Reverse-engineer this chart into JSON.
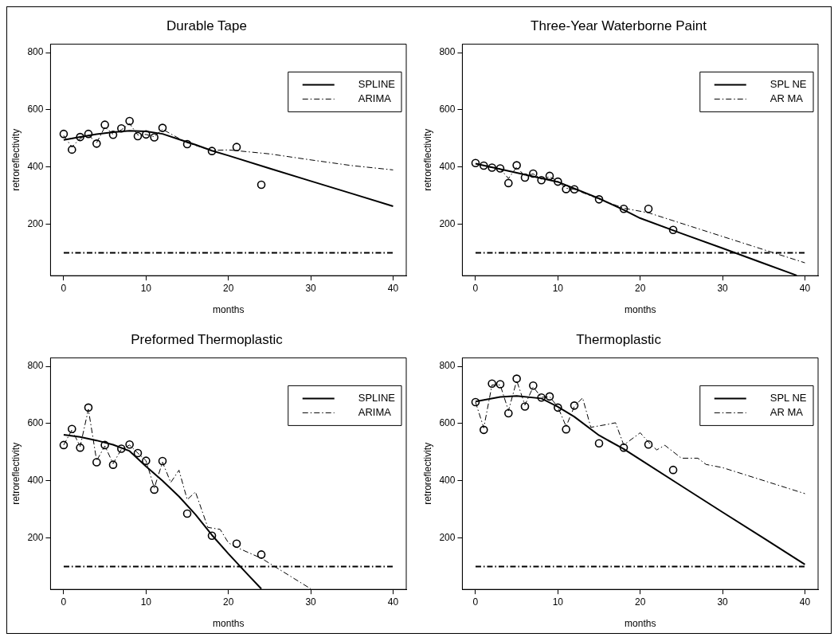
{
  "chart_data": [
    {
      "type": "line",
      "title": "Durable Tape",
      "xlabel": "months",
      "ylabel": "retroreflectivity",
      "xlim": [
        -1.6,
        41.6
      ],
      "ylim": [
        20,
        830
      ],
      "xticks": [
        0,
        10,
        20,
        30,
        40
      ],
      "yticks": [
        200,
        400,
        600,
        800
      ],
      "legend": "top right",
      "ref_lines": [
        {
          "axis": "y",
          "value": 100,
          "line_style": "dashed",
          "color": "#000000"
        }
      ],
      "series": [
        {
          "type": "scatter",
          "marker": "circle",
          "color": "#000000",
          "x": [
            0,
            1,
            2,
            3,
            4,
            5,
            6,
            7,
            8,
            9,
            10,
            11,
            12,
            15,
            18,
            21,
            24
          ],
          "values": [
            516,
            461,
            505,
            516,
            482,
            548,
            513,
            535,
            561,
            508,
            514,
            504,
            537,
            480,
            456,
            470,
            338
          ]
        },
        {
          "type": "line",
          "name": "SPLINE",
          "color": "#000000",
          "line_style": "solid",
          "marker": "none",
          "x": [
            0,
            2,
            4,
            6,
            8,
            10,
            12,
            14,
            16,
            18,
            20,
            25,
            30,
            35,
            40
          ],
          "values": [
            495,
            505,
            515,
            522,
            527,
            525,
            516,
            497,
            478,
            457,
            440,
            395,
            351,
            307,
            263
          ]
        },
        {
          "type": "line",
          "name": "ARIMA",
          "color": "#000000",
          "line_style": "dashed",
          "marker": "none",
          "x": [
            0,
            1,
            2,
            3,
            4,
            5,
            6,
            7,
            8,
            9,
            10,
            11,
            12,
            14,
            15,
            18,
            20,
            25,
            30,
            35,
            40
          ],
          "values": [
            510,
            470,
            500,
            512,
            485,
            540,
            515,
            530,
            552,
            512,
            514,
            506,
            532,
            500,
            485,
            458,
            460,
            446,
            425,
            405,
            390
          ]
        }
      ]
    },
    {
      "type": "line",
      "title": "Three-Year Waterborne Paint",
      "xlabel": "months",
      "ylabel": "retroreflectivity",
      "xlim": [
        -1.6,
        41.6
      ],
      "ylim": [
        20,
        830
      ],
      "xticks": [
        0,
        10,
        20,
        30,
        40
      ],
      "yticks": [
        200,
        400,
        600,
        800
      ],
      "legend": "top right",
      "ref_lines": [
        {
          "axis": "y",
          "value": 100,
          "line_style": "dashed",
          "color": "#000000"
        }
      ],
      "series": [
        {
          "type": "scatter",
          "marker": "circle",
          "color": "#000000",
          "x": [
            0,
            1,
            2,
            3,
            4,
            5,
            6,
            7,
            8,
            9,
            10,
            11,
            12,
            15,
            18,
            21,
            24
          ],
          "values": [
            414,
            405,
            398,
            395,
            344,
            406,
            363,
            377,
            354,
            369,
            349,
            323,
            322,
            287,
            254,
            254,
            180
          ]
        },
        {
          "type": "line",
          "name": "SPL NE",
          "color": "#000000",
          "line_style": "solid",
          "marker": "none",
          "x": [
            0,
            5,
            10,
            15,
            18,
            20,
            25,
            30,
            35,
            39
          ],
          "values": [
            412,
            380,
            348,
            290,
            250,
            221,
            168,
            116,
            63,
            21
          ]
        },
        {
          "type": "line",
          "name": "AR MA",
          "color": "#000000",
          "line_style": "dashed",
          "marker": "none",
          "x": [
            0,
            1,
            2,
            3,
            4,
            5,
            6,
            7,
            8,
            9,
            10,
            11,
            12,
            15,
            18,
            21,
            30,
            40
          ],
          "values": [
            412,
            405,
            398,
            394,
            360,
            400,
            368,
            376,
            358,
            366,
            350,
            326,
            322,
            288,
            256,
            240,
            157,
            65
          ]
        }
      ]
    },
    {
      "type": "line",
      "title": "Preformed Thermoplastic",
      "xlabel": "months",
      "ylabel": "retroreflectivity",
      "xlim": [
        -1.6,
        41.6
      ],
      "ylim": [
        20,
        830
      ],
      "xticks": [
        0,
        10,
        20,
        30,
        40
      ],
      "yticks": [
        200,
        400,
        600,
        800
      ],
      "legend": "top right",
      "ref_lines": [
        {
          "axis": "y",
          "value": 100,
          "line_style": "dashed",
          "color": "#000000"
        }
      ],
      "series": [
        {
          "type": "scatter",
          "marker": "circle",
          "color": "#000000",
          "x": [
            0,
            1,
            2,
            3,
            4,
            5,
            6,
            7,
            8,
            9,
            10,
            11,
            12,
            15,
            18,
            21,
            24
          ],
          "values": [
            525,
            581,
            516,
            656,
            465,
            525,
            456,
            512,
            527,
            497,
            470,
            369,
            469,
            285,
            208,
            180,
            142
          ]
        },
        {
          "type": "line",
          "name": "SPLINE",
          "color": "#000000",
          "line_style": "solid",
          "marker": "none",
          "x": [
            0,
            2,
            4,
            6,
            8,
            10,
            12,
            14,
            16,
            18,
            20,
            22,
            24
          ],
          "values": [
            561,
            553,
            541,
            526,
            504,
            450,
            400,
            345,
            282,
            210,
            145,
            83,
            22
          ]
        },
        {
          "type": "line",
          "name": "ARIMA",
          "color": "#000000",
          "line_style": "dashed",
          "marker": "none",
          "x": [
            0,
            1,
            2,
            3,
            4,
            5,
            6,
            7,
            8,
            9,
            10,
            11,
            12,
            13,
            14,
            15,
            16,
            17.5,
            19,
            20,
            21,
            24,
            30
          ],
          "values": [
            525,
            578,
            520,
            650,
            470,
            522,
            460,
            510,
            525,
            497,
            470,
            375,
            465,
            394,
            437,
            334,
            361,
            237,
            230,
            183,
            167,
            129,
            22
          ]
        }
      ]
    },
    {
      "type": "line",
      "title": "Thermoplastic",
      "xlabel": "months",
      "ylabel": "retroreflectivity",
      "xlim": [
        -1.6,
        41.6
      ],
      "ylim": [
        20,
        830
      ],
      "xticks": [
        0,
        10,
        20,
        30,
        40
      ],
      "yticks": [
        200,
        400,
        600,
        800
      ],
      "legend": "top right",
      "ref_lines": [
        {
          "axis": "y",
          "value": 100,
          "line_style": "dashed",
          "color": "#000000"
        }
      ],
      "series": [
        {
          "type": "scatter",
          "marker": "circle",
          "color": "#000000",
          "x": [
            0,
            1,
            2,
            3,
            4,
            5,
            6,
            7,
            8,
            9,
            10,
            11,
            12,
            15,
            18,
            21,
            24
          ],
          "values": [
            675,
            578,
            740,
            738,
            636,
            757,
            660,
            733,
            691,
            695,
            656,
            580,
            663,
            531,
            516,
            527,
            438
          ]
        },
        {
          "type": "line",
          "name": "SPL NE",
          "color": "#000000",
          "line_style": "solid",
          "marker": "none",
          "x": [
            0,
            3,
            5,
            8,
            10,
            12,
            15,
            18,
            20,
            25,
            30,
            35,
            40
          ],
          "values": [
            677,
            693,
            697,
            688,
            659,
            624,
            559,
            511,
            474,
            382,
            290,
            199,
            107
          ]
        },
        {
          "type": "line",
          "name": "AR MA",
          "color": "#000000",
          "line_style": "dashed",
          "marker": "none",
          "x": [
            0,
            1,
            2,
            3,
            4,
            5,
            6,
            7,
            8,
            9,
            10,
            11,
            12,
            13,
            14,
            16,
            17,
            18,
            20,
            21,
            22,
            23,
            25,
            27,
            28,
            30,
            40
          ],
          "values": [
            675,
            585,
            735,
            735,
            645,
            750,
            665,
            728,
            692,
            694,
            658,
            590,
            660,
            690,
            587,
            597,
            603,
            525,
            568,
            535,
            508,
            524,
            479,
            479,
            457,
            446,
            355
          ]
        }
      ]
    }
  ]
}
